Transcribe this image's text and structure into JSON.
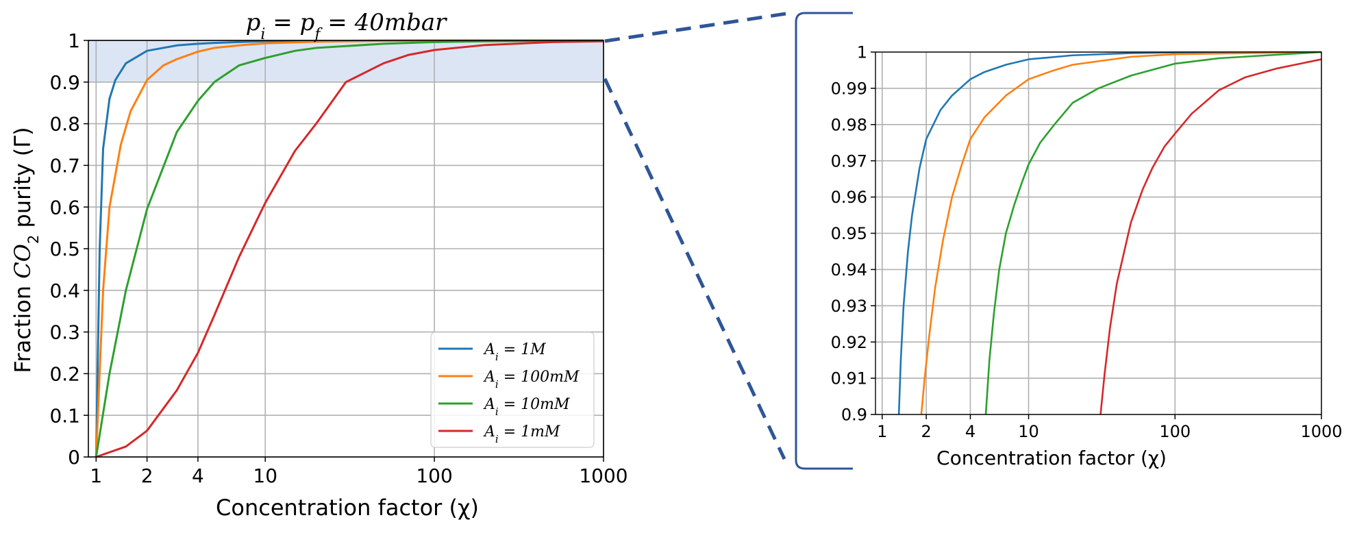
{
  "colors": {
    "blue": "#1f77b4",
    "orange": "#ff7f0e",
    "green": "#2ca02c",
    "red": "#d62728",
    "highlight": "#dce5f4",
    "zoom_connector": "#2e5597",
    "grid": "#b0b0b0"
  },
  "chart_data": [
    {
      "type": "line",
      "title": "p_i = p_f = 40mbar",
      "title_parts": {
        "p": "p",
        "i": "i",
        "f": "f",
        "eq": " = ",
        "value": "40mbar"
      },
      "xlabel": "Concentration factor (χ)",
      "ylabel_parts": {
        "pre": "Fraction ",
        "co": "CO",
        "sub": "2",
        "post": " purity (Γ)"
      },
      "x_scale": "log",
      "xlim": [
        0.9,
        1000
      ],
      "ylim": [
        0,
        1
      ],
      "x_ticks": [
        1,
        2,
        4,
        10,
        100,
        1000
      ],
      "x_tick_labels": [
        "1",
        "2",
        "4",
        "10",
        "100",
        "1000"
      ],
      "y_ticks": [
        0,
        0.1,
        0.2,
        0.3,
        0.4,
        0.5,
        0.6,
        0.7,
        0.8,
        0.9,
        1
      ],
      "y_tick_labels": [
        "0",
        "0.1",
        "0.2",
        "0.3",
        "0.4",
        "0.5",
        "0.6",
        "0.7",
        "0.8",
        "0.9",
        "1"
      ],
      "grid": true,
      "shaded_band": {
        "y_from": 0.9,
        "y_to": 1.0
      },
      "legend_position": "lower-right",
      "series": [
        {
          "name": "A_i = 1M",
          "label_base": "A",
          "label_sub": "i",
          "label_rest": " = 1M",
          "color": "blue",
          "x": [
            1,
            1.05,
            1.1,
            1.2,
            1.3,
            1.5,
            2,
            3,
            4,
            5,
            7,
            10,
            20,
            50,
            100,
            1000
          ],
          "y": [
            0,
            0.5,
            0.74,
            0.86,
            0.905,
            0.945,
            0.975,
            0.988,
            0.992,
            0.994,
            0.996,
            0.998,
            0.999,
            0.9995,
            0.9998,
            1
          ]
        },
        {
          "name": "A_i = 100mM",
          "label_base": "A",
          "label_sub": "i",
          "label_rest": " = 100mM",
          "color": "orange",
          "x": [
            1,
            1.1,
            1.2,
            1.4,
            1.6,
            2,
            2.5,
            3,
            4,
            5,
            7,
            10,
            20,
            50,
            100,
            1000
          ],
          "y": [
            0,
            0.4,
            0.6,
            0.75,
            0.83,
            0.905,
            0.94,
            0.955,
            0.973,
            0.982,
            0.988,
            0.993,
            0.997,
            0.999,
            0.9995,
            1
          ]
        },
        {
          "name": "A_i = 10mM",
          "label_base": "A",
          "label_sub": "i",
          "label_rest": " = 10mM",
          "color": "green",
          "x": [
            1,
            1.2,
            1.5,
            2,
            3,
            4,
            5,
            7,
            10,
            15,
            20,
            50,
            100,
            200,
            500,
            1000
          ],
          "y": [
            0,
            0.2,
            0.4,
            0.595,
            0.78,
            0.855,
            0.9,
            0.94,
            0.958,
            0.975,
            0.982,
            0.992,
            0.996,
            0.998,
            0.9992,
            1
          ]
        },
        {
          "name": "A_i = 1mM",
          "label_base": "A",
          "label_sub": "i",
          "label_rest": " = 1mM",
          "color": "red",
          "x": [
            1,
            1.5,
            2,
            3,
            4,
            5,
            7,
            10,
            15,
            20,
            30,
            50,
            70,
            100,
            200,
            500,
            1000
          ],
          "y": [
            0,
            0.025,
            0.063,
            0.16,
            0.25,
            0.34,
            0.48,
            0.61,
            0.735,
            0.8,
            0.9,
            0.945,
            0.965,
            0.977,
            0.989,
            0.996,
            0.998
          ]
        }
      ]
    },
    {
      "type": "line",
      "title": "",
      "xlabel": "Concentration factor (χ)",
      "x_scale": "log",
      "xlim": [
        0.9,
        1000
      ],
      "ylim": [
        0.9,
        1
      ],
      "x_ticks": [
        1,
        2,
        4,
        10,
        100,
        1000
      ],
      "x_tick_labels": [
        "1",
        "2",
        "4",
        "10",
        "100",
        "1000"
      ],
      "y_ticks": [
        0.9,
        0.91,
        0.92,
        0.93,
        0.94,
        0.95,
        0.96,
        0.97,
        0.98,
        0.99,
        1
      ],
      "y_tick_labels": [
        "0.9",
        "0.91",
        "0.92",
        "0.93",
        "0.94",
        "0.95",
        "0.96",
        "0.97",
        "0.98",
        "0.99",
        "1"
      ],
      "grid": true,
      "series": [
        {
          "color": "blue",
          "x": [
            1.3,
            1.34,
            1.4,
            1.5,
            1.6,
            1.8,
            2,
            2.5,
            3,
            4,
            5,
            7,
            10,
            20,
            50,
            100,
            1000
          ],
          "y": [
            0.9,
            0.915,
            0.93,
            0.945,
            0.955,
            0.968,
            0.976,
            0.984,
            0.988,
            0.9925,
            0.9945,
            0.9965,
            0.998,
            0.9991,
            0.9997,
            0.9999,
            1
          ]
        },
        {
          "color": "orange",
          "x": [
            1.85,
            1.95,
            2.1,
            2.3,
            2.6,
            3,
            3.5,
            4,
            5,
            7,
            10,
            15,
            20,
            50,
            100,
            1000
          ],
          "y": [
            0.9,
            0.91,
            0.922,
            0.935,
            0.948,
            0.96,
            0.969,
            0.976,
            0.982,
            0.988,
            0.9925,
            0.995,
            0.9965,
            0.9987,
            0.9994,
            1
          ]
        },
        {
          "color": "green",
          "x": [
            5.1,
            5.4,
            5.8,
            6.3,
            7,
            8,
            9,
            10,
            12,
            15,
            20,
            30,
            50,
            100,
            200,
            1000
          ],
          "y": [
            0.9,
            0.915,
            0.928,
            0.94,
            0.95,
            0.958,
            0.964,
            0.969,
            0.975,
            0.98,
            0.986,
            0.99,
            0.9935,
            0.9968,
            0.9983,
            1
          ]
        },
        {
          "color": "red",
          "x": [
            31,
            33,
            36,
            40,
            45,
            50,
            60,
            70,
            85,
            100,
            130,
            200,
            300,
            500,
            1000
          ],
          "y": [
            0.9,
            0.911,
            0.924,
            0.936,
            0.945,
            0.953,
            0.962,
            0.968,
            0.974,
            0.9775,
            0.983,
            0.9895,
            0.993,
            0.9955,
            0.998
          ]
        }
      ]
    }
  ]
}
